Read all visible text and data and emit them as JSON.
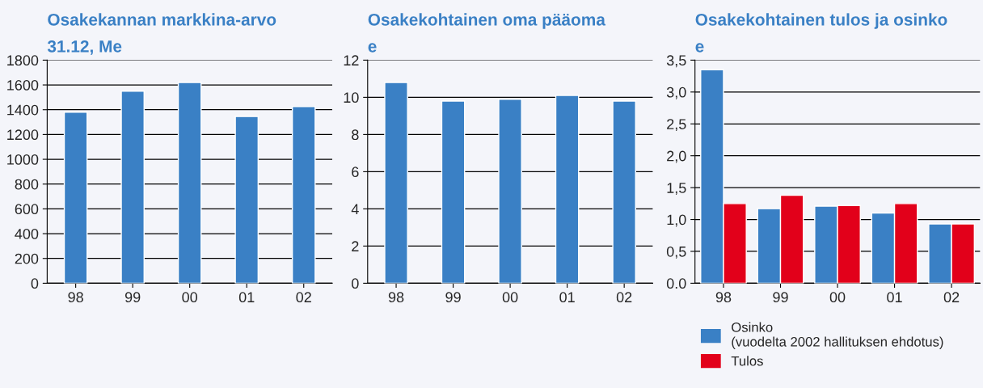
{
  "chart_data": [
    {
      "type": "bar",
      "title": "Osakekannan markkina-arvo",
      "subtitle": "31.12, Me",
      "categories": [
        "98",
        "99",
        "00",
        "01",
        "02"
      ],
      "color": "#3a80c5",
      "values": [
        1380,
        1550,
        1620,
        1345,
        1425
      ],
      "ylim": [
        0,
        1800
      ],
      "yticks": [
        0,
        200,
        400,
        600,
        800,
        1000,
        1200,
        1400,
        1600,
        1800
      ],
      "grid": "y"
    },
    {
      "type": "bar",
      "title": "Osakekohtainen oma pääoma",
      "subtitle": "e",
      "categories": [
        "98",
        "99",
        "00",
        "01",
        "02"
      ],
      "color": "#3a80c5",
      "values": [
        10.8,
        9.8,
        9.9,
        10.1,
        9.8
      ],
      "ylim": [
        0,
        12
      ],
      "yticks": [
        0,
        2,
        4,
        6,
        8,
        10,
        12
      ],
      "grid": "y"
    },
    {
      "type": "bar",
      "title": "Osakekohtainen tulos ja osinko",
      "subtitle": "e",
      "categories": [
        "98",
        "99",
        "00",
        "01",
        "02"
      ],
      "ylim": [
        0,
        3.5
      ],
      "yticks": [
        {
          "value": 0,
          "label": "0.0"
        },
        {
          "value": 0.5,
          "label": "0,5"
        },
        {
          "value": 1,
          "label": "1,0"
        },
        {
          "value": 1.5,
          "label": "1,5"
        },
        {
          "value": 2,
          "label": "2,0"
        },
        {
          "value": 2.5,
          "label": "2,5"
        },
        {
          "value": 3,
          "label": "3,0"
        },
        {
          "value": 3.5,
          "label": "3,5"
        }
      ],
      "grid": "y",
      "legend": "bottom",
      "series": [
        {
          "name": "Osinko\n(vuodelta 2002 hallituksen ehdotus)",
          "color": "#3a80c5",
          "values": [
            3.35,
            1.17,
            1.21,
            1.1,
            0.93
          ]
        },
        {
          "name": "Tulos",
          "color": "#e2001a",
          "values": [
            1.25,
            1.38,
            1.22,
            1.25,
            0.93
          ]
        }
      ]
    }
  ]
}
